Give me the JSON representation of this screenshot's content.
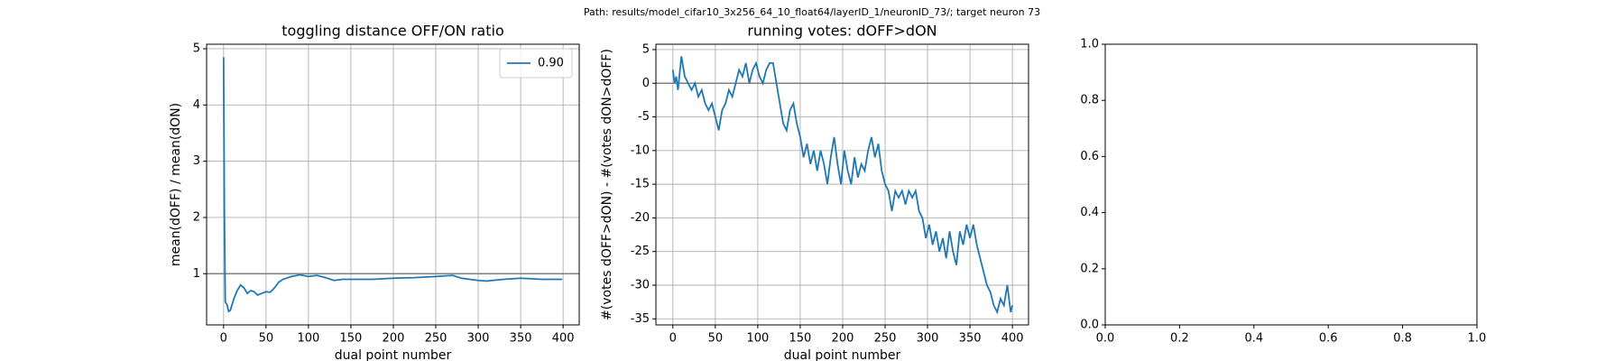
{
  "suptitle": "Path: results/model_cifar10_3x256_64_10_float64/layerID_1/neuronID_73/; target neuron 73",
  "chart_data": [
    {
      "type": "line",
      "title": "toggling distance OFF/ON ratio",
      "xlabel": "dual point number",
      "ylabel": "mean(dOFF) / mean(dON)",
      "x": [
        0,
        1,
        2,
        4,
        6,
        8,
        12,
        16,
        20,
        24,
        28,
        32,
        36,
        40,
        45,
        50,
        55,
        60,
        65,
        70,
        80,
        90,
        100,
        110,
        120,
        130,
        140,
        150,
        175,
        200,
        225,
        250,
        270,
        280,
        300,
        310,
        330,
        350,
        375,
        399
      ],
      "series": [
        {
          "name": "0.90",
          "color": "#1f77b4",
          "values": [
            4.85,
            2.0,
            0.5,
            0.45,
            0.33,
            0.35,
            0.55,
            0.7,
            0.8,
            0.75,
            0.65,
            0.7,
            0.68,
            0.62,
            0.65,
            0.68,
            0.67,
            0.75,
            0.85,
            0.9,
            0.95,
            0.98,
            0.95,
            0.97,
            0.93,
            0.88,
            0.9,
            0.9,
            0.9,
            0.92,
            0.93,
            0.95,
            0.97,
            0.92,
            0.88,
            0.87,
            0.9,
            0.92,
            0.9,
            0.9
          ]
        }
      ],
      "hlines": [
        1
      ],
      "xlim": [
        -20,
        419
      ],
      "ylim": [
        0.09,
        5.08
      ],
      "xticks": [
        0,
        50,
        100,
        150,
        200,
        250,
        300,
        350,
        400
      ],
      "yticks": [
        1,
        2,
        3,
        4,
        5
      ],
      "grid": true,
      "legend": "upper right"
    },
    {
      "type": "line",
      "title": "running votes: dOFF>dON",
      "xlabel": "dual point number",
      "ylabel": "#(votes dOFF>dON) - #(votes dON>dOFF)",
      "x": [
        0,
        2,
        4,
        6,
        10,
        14,
        18,
        22,
        26,
        30,
        34,
        38,
        42,
        46,
        50,
        54,
        58,
        62,
        66,
        70,
        74,
        78,
        82,
        86,
        90,
        94,
        98,
        102,
        106,
        110,
        114,
        118,
        122,
        126,
        130,
        134,
        138,
        142,
        146,
        150,
        154,
        158,
        162,
        166,
        170,
        174,
        178,
        182,
        186,
        190,
        194,
        198,
        202,
        206,
        210,
        214,
        218,
        222,
        226,
        230,
        234,
        238,
        242,
        246,
        250,
        254,
        258,
        262,
        266,
        270,
        274,
        278,
        282,
        286,
        290,
        294,
        298,
        302,
        306,
        310,
        314,
        318,
        322,
        326,
        330,
        334,
        338,
        342,
        346,
        350,
        354,
        358,
        362,
        366,
        370,
        374,
        378,
        382,
        386,
        390,
        394,
        398,
        400
      ],
      "series": [
        {
          "color": "#1f77b4",
          "values": [
            2,
            0,
            1,
            -1,
            4,
            1,
            0,
            -1,
            0,
            -2,
            -1,
            -3,
            -4,
            -3,
            -5,
            -7,
            -4,
            -3,
            -1,
            -2,
            0,
            2,
            1,
            3,
            0,
            2,
            3,
            1,
            0,
            2,
            3,
            3,
            0,
            -3,
            -6,
            -7,
            -4,
            -3,
            -6,
            -8,
            -11,
            -9,
            -12,
            -10,
            -13,
            -10,
            -12,
            -15,
            -11,
            -8,
            -12,
            -15,
            -10,
            -13,
            -15,
            -11,
            -14,
            -12,
            -13,
            -10,
            -8,
            -11,
            -9,
            -13,
            -15,
            -16,
            -19,
            -16,
            -17,
            -16,
            -18,
            -16,
            -17,
            -16,
            -19,
            -20,
            -23,
            -21,
            -24,
            -22,
            -25,
            -23,
            -26,
            -22,
            -25,
            -27,
            -22,
            -24,
            -21,
            -23,
            -21,
            -24,
            -26,
            -28,
            -30,
            -31,
            -33,
            -34,
            -32,
            -33,
            -30,
            -34,
            -33
          ]
        }
      ],
      "hlines": [
        0
      ],
      "xlim": [
        -20,
        419
      ],
      "ylim": [
        -35.9,
        5.8
      ],
      "xticks": [
        0,
        50,
        100,
        150,
        200,
        250,
        300,
        350,
        400
      ],
      "yticks": [
        -35,
        -30,
        -25,
        -20,
        -15,
        -10,
        -5,
        0,
        5
      ],
      "grid": true
    },
    {
      "type": "empty",
      "xlim": [
        0,
        1
      ],
      "ylim": [
        0,
        1
      ],
      "xticks": [
        {
          "value": 0,
          "label": "0.0"
        },
        {
          "value": 0.2,
          "label": "0.2"
        },
        {
          "value": 0.4,
          "label": "0.4"
        },
        {
          "value": 0.6,
          "label": "0.6"
        },
        {
          "value": 0.8,
          "label": "0.8"
        },
        {
          "value": 1,
          "label": "1.0"
        }
      ],
      "yticks": [
        {
          "value": 0,
          "label": "0.0"
        },
        {
          "value": 0.2,
          "label": "0.2"
        },
        {
          "value": 0.4,
          "label": "0.4"
        },
        {
          "value": 0.6,
          "label": "0.6"
        },
        {
          "value": 0.8,
          "label": "0.8"
        },
        {
          "value": 1,
          "label": "1.0"
        }
      ],
      "grid": false
    }
  ]
}
